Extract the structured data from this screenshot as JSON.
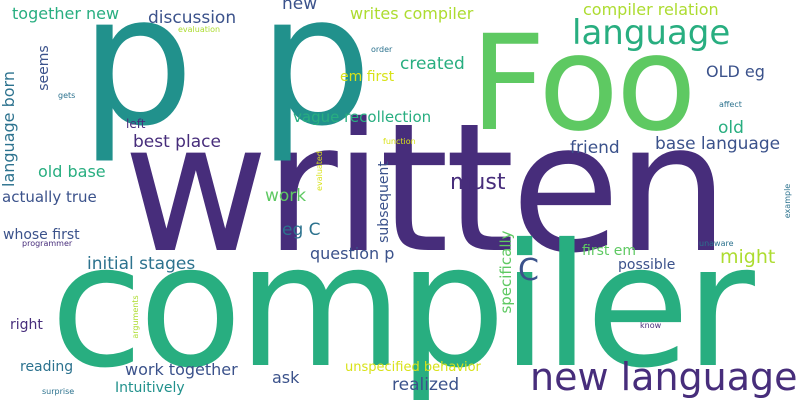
{
  "words": {
    "written": "written",
    "compiler_big": "compiler",
    "p1": "p",
    "p2": "p",
    "foo": "Foo",
    "new_language": "new language",
    "language": "language",
    "c": "C",
    "must": "must",
    "compiler_relation": "compiler relation",
    "writes_compiler": "writes compiler",
    "together_new": "together new",
    "discussion": "discussion",
    "new": "new",
    "created": "created",
    "em_first": "em first",
    "old_eg": "OLD eg",
    "vague_recollection": "vague recollection",
    "best_place": "best place",
    "base_language": "base language",
    "old": "old",
    "friend": "friend",
    "old_base": "old base",
    "actually_true": "actually true",
    "work": "work",
    "eg_c": "eg C",
    "whose_first": "whose first",
    "question_p": "question p",
    "might": "might",
    "first_em": "first em",
    "possible": "possible",
    "initial_stages": "initial stages",
    "right": "right",
    "work_together": "work together",
    "reading": "reading",
    "ask": "ask",
    "unspecified_behavior": "unspecified behavior",
    "realized": "realized",
    "intuitively": "Intuitively",
    "left": "left",
    "gets": "gets",
    "programmer": "programmer",
    "surprise": "surprise",
    "evaluation": "evaluation",
    "order": "order",
    "affect": "affect",
    "function": "function",
    "unaware": "unaware",
    "know": "know",
    "language_born": "language born",
    "seems": "seems",
    "subsequent": "subsequent",
    "specifically": "specifically",
    "evaluated": "evaluated",
    "arguments": "arguments",
    "example": "example"
  }
}
